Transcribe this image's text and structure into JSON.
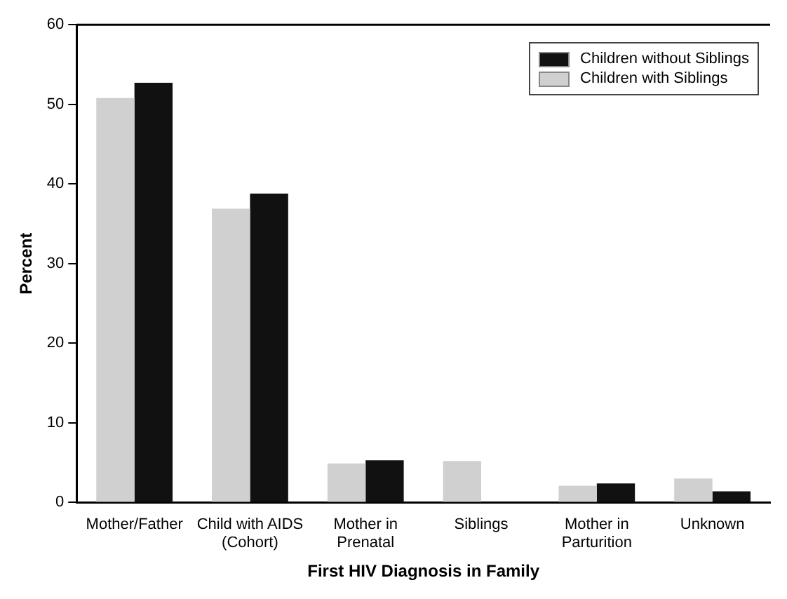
{
  "chart_data": {
    "type": "bar",
    "xlabel": "First HIV Diagnosis in Family",
    "ylabel": "Percent",
    "categories": [
      "Mother/Father",
      "Child with AIDS\n(Cohort)",
      "Mother in\nPrenatal",
      "Siblings",
      "Mother in\nParturition",
      "Unknown"
    ],
    "series": [
      {
        "name": "Children with Siblings",
        "color": "#d0d0d0",
        "values": [
          50.8,
          36.9,
          4.9,
          5.2,
          2.1,
          3.0
        ]
      },
      {
        "name": "Children without Siblings",
        "color": "#111111",
        "values": [
          52.7,
          38.8,
          5.3,
          0,
          2.4,
          1.4
        ]
      }
    ],
    "ylim": [
      0,
      60
    ],
    "yticks": [
      0,
      10,
      20,
      30,
      40,
      50,
      60
    ],
    "grid": false,
    "legend": "top right"
  }
}
